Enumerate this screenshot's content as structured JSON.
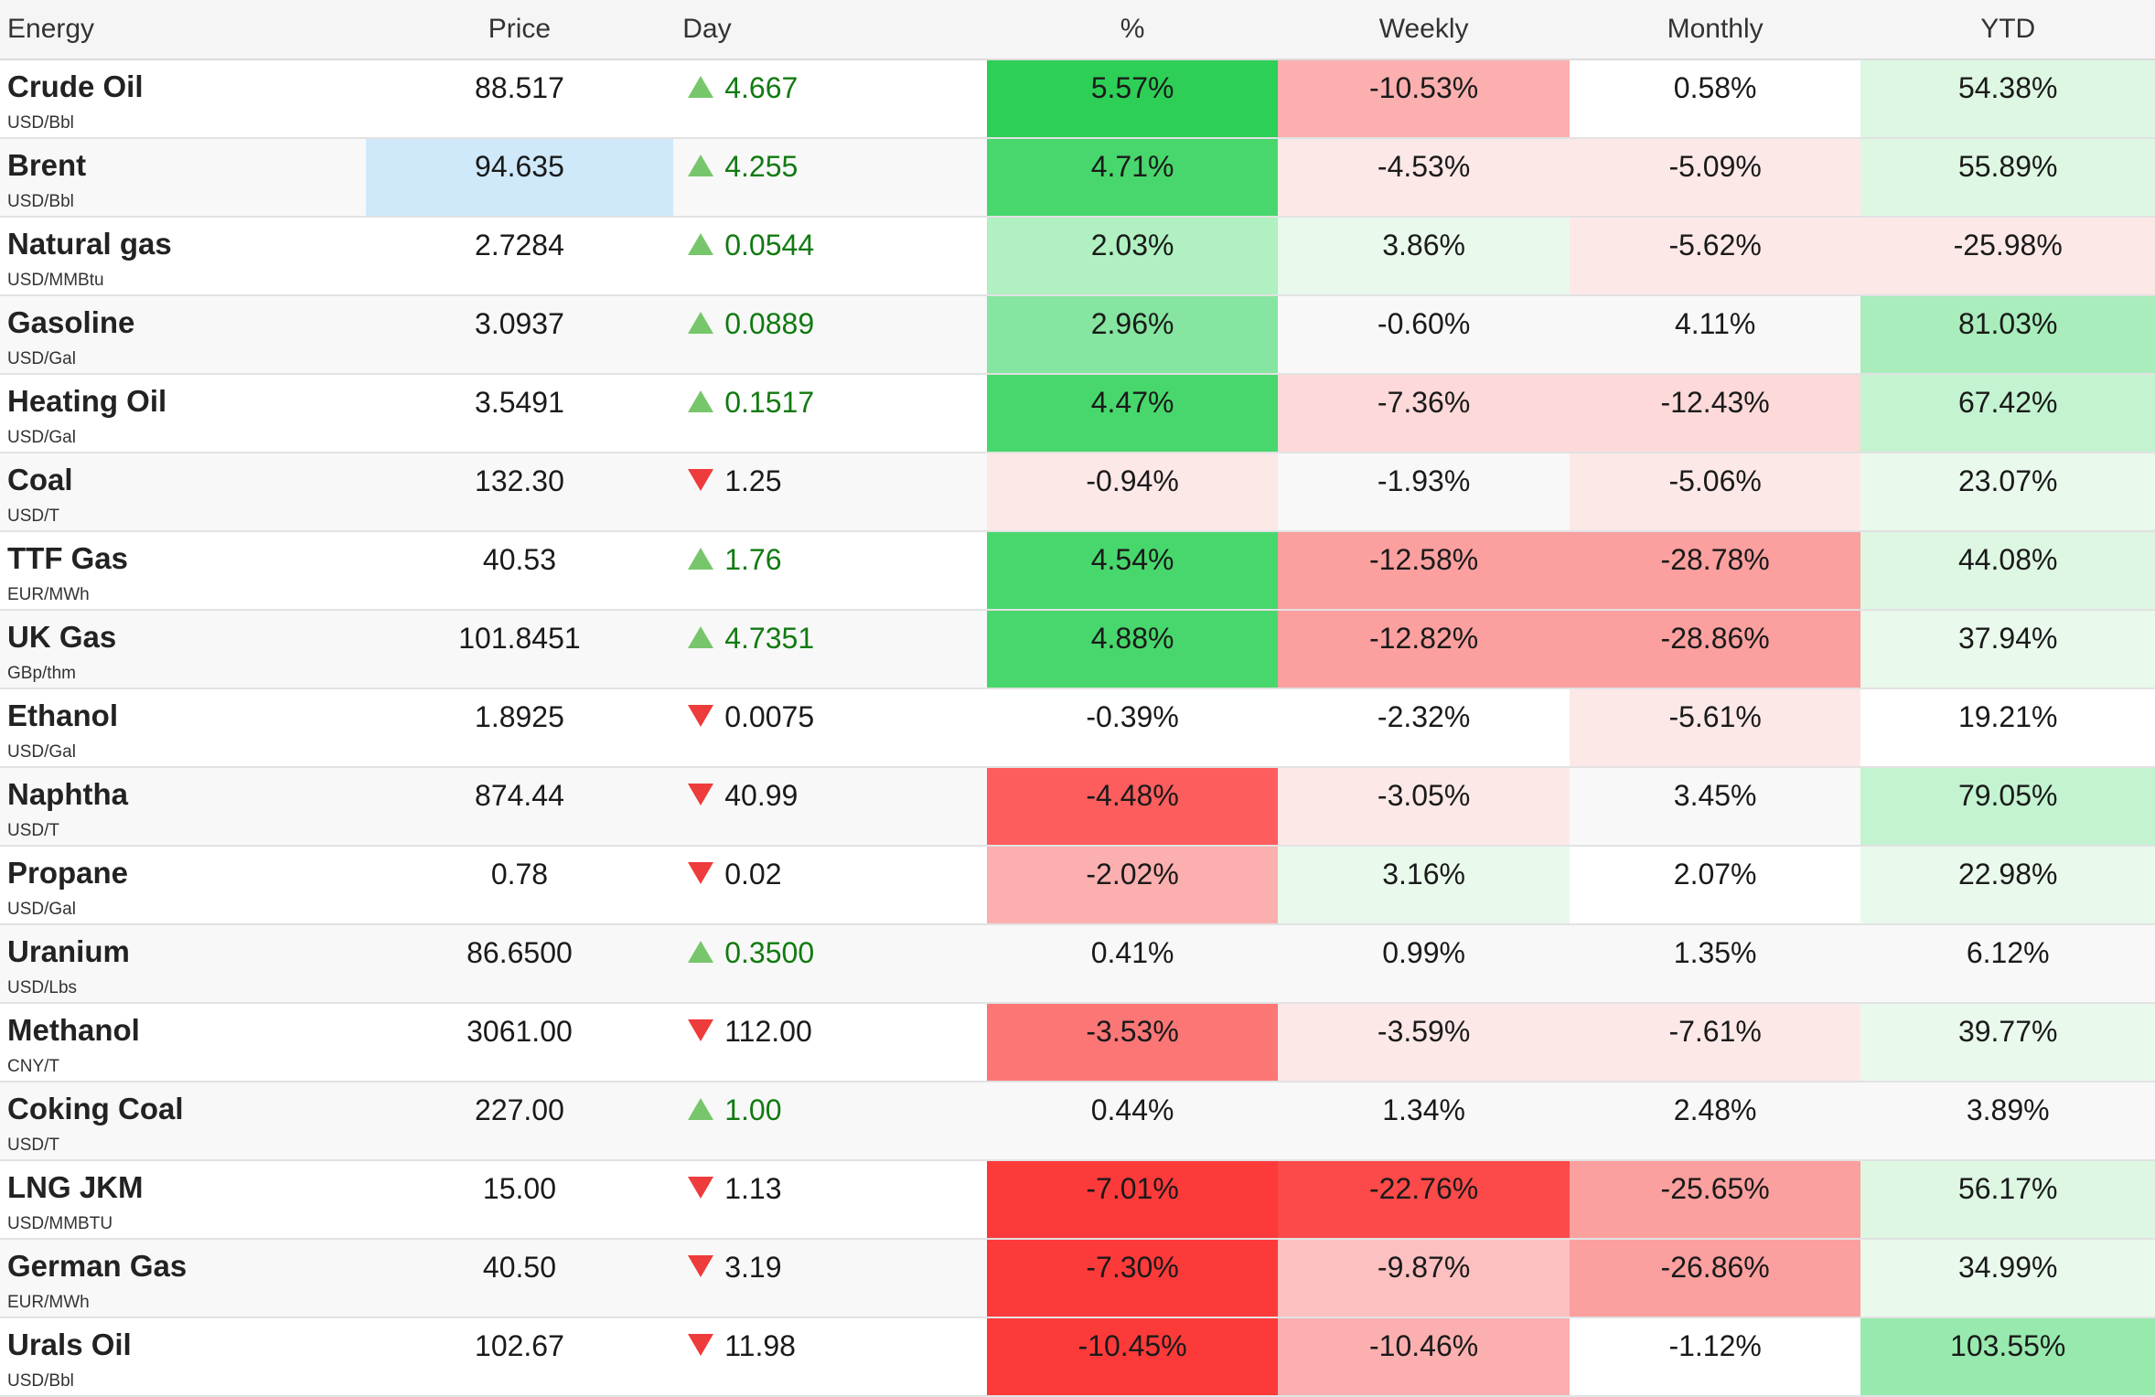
{
  "headers": {
    "name": "Energy",
    "price": "Price",
    "day": "Day",
    "pct": "%",
    "weekly": "Weekly",
    "monthly": "Monthly",
    "ytd": "YTD"
  },
  "colors": {
    "highlight_price": "#cfe9fb",
    "arrow_up": "#77c66b",
    "arrow_down": "#ee3b3b",
    "day_up_text": "#117a11"
  },
  "rows": [
    {
      "name": "Crude Oil",
      "unit": "USD/Bbl",
      "price": "88.517",
      "dir": "up",
      "day": "4.667",
      "pct": "5.57%",
      "weekly": "-10.53%",
      "monthly": "0.58%",
      "ytd": "54.38%",
      "bg": {
        "pct": "#2ecf57",
        "weekly": "#fbafaf",
        "monthly": "",
        "ytd": "#ddf7e2"
      }
    },
    {
      "name": "Brent",
      "unit": "USD/Bbl",
      "price": "94.635",
      "dir": "up",
      "day": "4.255",
      "pct": "4.71%",
      "weekly": "-4.53%",
      "monthly": "-5.09%",
      "ytd": "55.89%",
      "price_highlight": true,
      "bg": {
        "pct": "#48d76c",
        "weekly": "#fde8e8",
        "monthly": "#fde8e8",
        "ytd": "#ddf7e2"
      }
    },
    {
      "name": "Natural gas",
      "unit": "USD/MMBtu",
      "price": "2.7284",
      "dir": "up",
      "day": "0.0544",
      "pct": "2.03%",
      "weekly": "3.86%",
      "monthly": "-5.62%",
      "ytd": "-25.98%",
      "bg": {
        "pct": "#b0f0c1",
        "weekly": "#e9f9ec",
        "monthly": "#fde8e8",
        "ytd": "#fde8e8"
      }
    },
    {
      "name": "Gasoline",
      "unit": "USD/Gal",
      "price": "3.0937",
      "dir": "up",
      "day": "0.0889",
      "pct": "2.96%",
      "weekly": "-0.60%",
      "monthly": "4.11%",
      "ytd": "81.03%",
      "bg": {
        "pct": "#86e5a0",
        "weekly": "",
        "monthly": "",
        "ytd": "#a8edbb"
      }
    },
    {
      "name": "Heating Oil",
      "unit": "USD/Gal",
      "price": "3.5491",
      "dir": "up",
      "day": "0.1517",
      "pct": "4.47%",
      "weekly": "-7.36%",
      "monthly": "-12.43%",
      "ytd": "67.42%",
      "bg": {
        "pct": "#48d76c",
        "weekly": "#fdd9d9",
        "monthly": "#fdd9d9",
        "ytd": "#c3f3d0"
      }
    },
    {
      "name": "Coal",
      "unit": "USD/T",
      "price": "132.30",
      "dir": "down",
      "day": "1.25",
      "pct": "-0.94%",
      "weekly": "-1.93%",
      "monthly": "-5.06%",
      "ytd": "23.07%",
      "bg": {
        "pct": "#fde8e8",
        "weekly": "",
        "monthly": "#fde8e8",
        "ytd": "#e9f9ec"
      }
    },
    {
      "name": "TTF Gas",
      "unit": "EUR/MWh",
      "price": "40.53",
      "dir": "up",
      "day": "1.76",
      "pct": "4.54%",
      "weekly": "-12.58%",
      "monthly": "-28.78%",
      "ytd": "44.08%",
      "bg": {
        "pct": "#48d76c",
        "weekly": "#fb9f9f",
        "monthly": "#fb9f9f",
        "ytd": "#ddf7e2"
      }
    },
    {
      "name": "UK Gas",
      "unit": "GBp/thm",
      "price": "101.8451",
      "dir": "up",
      "day": "4.7351",
      "pct": "4.88%",
      "weekly": "-12.82%",
      "monthly": "-28.86%",
      "ytd": "37.94%",
      "bg": {
        "pct": "#48d76c",
        "weekly": "#fb9f9f",
        "monthly": "#fb9f9f",
        "ytd": "#e9f9ec"
      }
    },
    {
      "name": "Ethanol",
      "unit": "USD/Gal",
      "price": "1.8925",
      "dir": "down",
      "day": "0.0075",
      "pct": "-0.39%",
      "weekly": "-2.32%",
      "monthly": "-5.61%",
      "ytd": "19.21%",
      "bg": {
        "pct": "",
        "weekly": "",
        "monthly": "#fde8e8",
        "ytd": ""
      }
    },
    {
      "name": "Naphtha",
      "unit": "USD/T",
      "price": "874.44",
      "dir": "down",
      "day": "40.99",
      "pct": "-4.48%",
      "weekly": "-3.05%",
      "monthly": "3.45%",
      "ytd": "79.05%",
      "bg": {
        "pct": "#fd5d5d",
        "weekly": "#fde8e8",
        "monthly": "",
        "ytd": "#c3f3d0"
      }
    },
    {
      "name": "Propane",
      "unit": "USD/Gal",
      "price": "0.78",
      "dir": "down",
      "day": "0.02",
      "pct": "-2.02%",
      "weekly": "3.16%",
      "monthly": "2.07%",
      "ytd": "22.98%",
      "bg": {
        "pct": "#fbafaf",
        "weekly": "#e9f9ec",
        "monthly": "",
        "ytd": "#e9f9ec"
      }
    },
    {
      "name": "Uranium",
      "unit": "USD/Lbs",
      "price": "86.6500",
      "dir": "up",
      "day": "0.3500",
      "pct": "0.41%",
      "weekly": "0.99%",
      "monthly": "1.35%",
      "ytd": "6.12%",
      "bg": {
        "pct": "",
        "weekly": "",
        "monthly": "",
        "ytd": ""
      }
    },
    {
      "name": "Methanol",
      "unit": "CNY/T",
      "price": "3061.00",
      "dir": "down",
      "day": "112.00",
      "pct": "-3.53%",
      "weekly": "-3.59%",
      "monthly": "-7.61%",
      "ytd": "39.77%",
      "bg": {
        "pct": "#fc7676",
        "weekly": "#fde8e8",
        "monthly": "#fde8e8",
        "ytd": "#e9f9ec"
      }
    },
    {
      "name": "Coking Coal",
      "unit": "USD/T",
      "price": "227.00",
      "dir": "up",
      "day": "1.00",
      "pct": "0.44%",
      "weekly": "1.34%",
      "monthly": "2.48%",
      "ytd": "3.89%",
      "bg": {
        "pct": "",
        "weekly": "",
        "monthly": "",
        "ytd": ""
      }
    },
    {
      "name": "LNG JKM",
      "unit": "USD/MMBTU",
      "price": "15.00",
      "dir": "down",
      "day": "1.13",
      "pct": "-7.01%",
      "weekly": "-22.76%",
      "monthly": "-25.65%",
      "ytd": "56.17%",
      "bg": {
        "pct": "#fc3a3a",
        "weekly": "#fc4949",
        "monthly": "#fb9f9f",
        "ytd": "#ddf7e2"
      }
    },
    {
      "name": "German Gas",
      "unit": "EUR/MWh",
      "price": "40.50",
      "dir": "down",
      "day": "3.19",
      "pct": "-7.30%",
      "weekly": "-9.87%",
      "monthly": "-26.86%",
      "ytd": "34.99%",
      "bg": {
        "pct": "#fc3a3a",
        "weekly": "#fcc0c0",
        "monthly": "#fb9f9f",
        "ytd": "#e9f9ec"
      }
    },
    {
      "name": "Urals Oil",
      "unit": "USD/Bbl",
      "price": "102.67",
      "dir": "down",
      "day": "11.98",
      "pct": "-10.45%",
      "weekly": "-10.46%",
      "monthly": "-1.12%",
      "ytd": "103.55%",
      "bg": {
        "pct": "#fc3a3a",
        "weekly": "#fbafaf",
        "monthly": "",
        "ytd": "#98e9ae"
      }
    }
  ]
}
